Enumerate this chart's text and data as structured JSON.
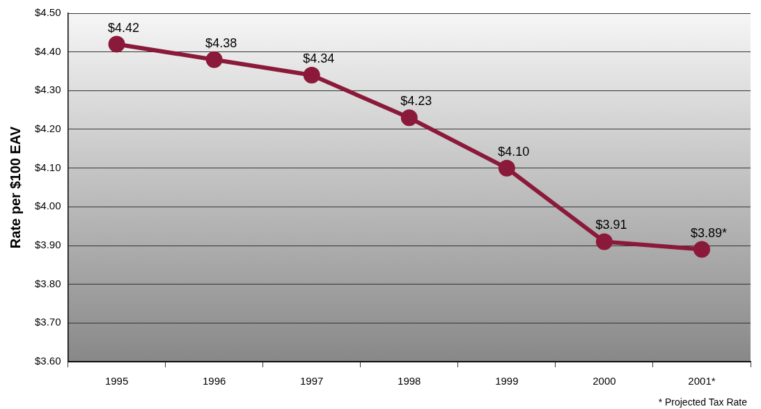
{
  "chart_data": {
    "type": "line",
    "ylabel": "Rate per $100 EAV",
    "categories": [
      "1995",
      "1996",
      "1997",
      "1998",
      "1999",
      "2000",
      "2001*"
    ],
    "series": [
      {
        "color": "#8b1a3a",
        "values": [
          4.42,
          4.38,
          4.34,
          4.23,
          4.1,
          3.91,
          3.89
        ],
        "value_labels": [
          "$4.42",
          "$4.38",
          "$4.34",
          "$4.23",
          "$4.10",
          "$3.91",
          "$3.89*"
        ]
      }
    ],
    "ylim": [
      3.6,
      4.5
    ],
    "yticks": [
      {
        "value": 3.6,
        "label": "$3.60"
      },
      {
        "value": 3.7,
        "label": "$3.70"
      },
      {
        "value": 3.8,
        "label": "$3.80"
      },
      {
        "value": 3.9,
        "label": "$3.90"
      },
      {
        "value": 4.0,
        "label": "$4.00"
      },
      {
        "value": 4.1,
        "label": "$4.10"
      },
      {
        "value": 4.2,
        "label": "$4.20"
      },
      {
        "value": 4.3,
        "label": "$4.30"
      },
      {
        "value": 4.4,
        "label": "$4.40"
      },
      {
        "value": 4.5,
        "label": "$4.50"
      }
    ],
    "grid": "y",
    "legend": false,
    "marker": "circle",
    "line_style": "solid",
    "annotations": [
      "* Projected Tax Rate"
    ]
  }
}
